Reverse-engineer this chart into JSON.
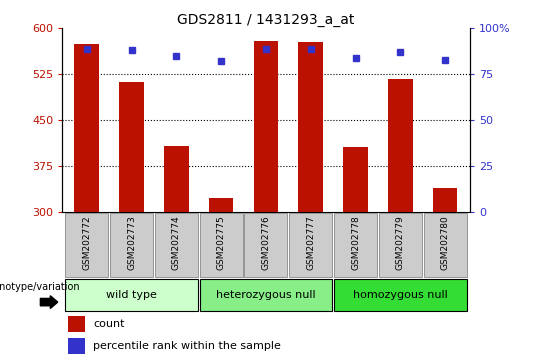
{
  "title": "GDS2811 / 1431293_a_at",
  "samples": [
    "GSM202772",
    "GSM202773",
    "GSM202774",
    "GSM202775",
    "GSM202776",
    "GSM202777",
    "GSM202778",
    "GSM202779",
    "GSM202780"
  ],
  "bar_values": [
    575,
    513,
    408,
    323,
    580,
    578,
    407,
    517,
    340
  ],
  "percentile_values": [
    89,
    88,
    85,
    82,
    89,
    89,
    84,
    87,
    83
  ],
  "bar_color": "#bb1100",
  "percentile_color": "#3333cc",
  "ylim_left": [
    300,
    600
  ],
  "ylim_right": [
    0,
    100
  ],
  "yticks_left": [
    300,
    375,
    450,
    525,
    600
  ],
  "yticks_right": [
    0,
    25,
    50,
    75,
    100
  ],
  "groups": [
    {
      "label": "wild type",
      "start": 0,
      "end": 3,
      "color": "#ccffcc"
    },
    {
      "label": "heterozygous null",
      "start": 3,
      "end": 6,
      "color": "#88ee88"
    },
    {
      "label": "homozygous null",
      "start": 6,
      "end": 9,
      "color": "#33dd33"
    }
  ],
  "genotype_label": "genotype/variation",
  "legend_bar_label": "count",
  "legend_perc_label": "percentile rank within the sample",
  "title_fontsize": 10,
  "bar_width": 0.55,
  "xtick_box_color": "#cccccc",
  "xtick_box_edge": "#888888"
}
